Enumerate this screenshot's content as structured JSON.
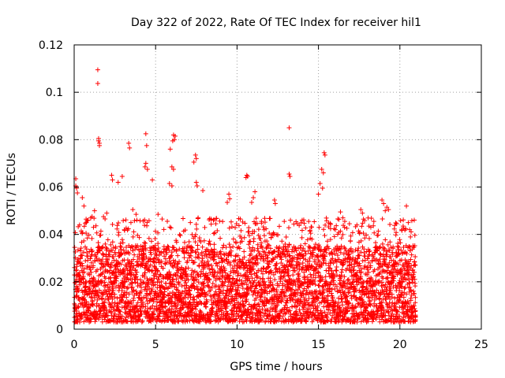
{
  "chart_data": {
    "type": "scatter",
    "title": "Day 322 of 2022, Rate Of TEC Index for receiver hil1",
    "xlabel": "GPS time / hours",
    "ylabel": "ROTI / TECUs",
    "xlim": [
      0,
      25
    ],
    "ylim": [
      0,
      0.12
    ],
    "x_ticks": [
      "0",
      "5",
      "10",
      "15",
      "20",
      "25"
    ],
    "y_ticks": [
      "0",
      "0.02",
      "0.04",
      "0.06",
      "0.08",
      "0.1",
      "0.12"
    ],
    "grid": true,
    "marker": "+",
    "color": "#ff0000",
    "x_range_data": [
      0,
      21
    ],
    "typical_y_range": [
      0.003,
      0.035
    ],
    "series": [
      {
        "points": [
          [
            1.45,
            0.1095
          ],
          [
            1.45,
            0.1037
          ],
          [
            1.5,
            0.0805
          ],
          [
            1.5,
            0.0795
          ],
          [
            1.55,
            0.0785
          ],
          [
            1.55,
            0.0775
          ],
          [
            13.2,
            0.085
          ],
          [
            4.4,
            0.0825
          ],
          [
            6.1,
            0.082
          ],
          [
            6.2,
            0.0815
          ],
          [
            6.15,
            0.08
          ],
          [
            6.05,
            0.0795
          ],
          [
            3.35,
            0.0785
          ],
          [
            3.4,
            0.0765
          ],
          [
            4.45,
            0.0775
          ],
          [
            4.4,
            0.07
          ],
          [
            4.35,
            0.0685
          ],
          [
            4.5,
            0.0675
          ],
          [
            5.9,
            0.076
          ],
          [
            6.0,
            0.0685
          ],
          [
            6.1,
            0.0675
          ],
          [
            7.45,
            0.0735
          ],
          [
            7.5,
            0.072
          ],
          [
            7.35,
            0.0705
          ],
          [
            7.5,
            0.062
          ],
          [
            7.55,
            0.0605
          ],
          [
            15.35,
            0.0745
          ],
          [
            15.4,
            0.0735
          ],
          [
            15.2,
            0.0675
          ],
          [
            15.3,
            0.066
          ],
          [
            13.2,
            0.0655
          ],
          [
            13.25,
            0.0645
          ],
          [
            10.6,
            0.065
          ],
          [
            10.65,
            0.0645
          ],
          [
            10.55,
            0.064
          ],
          [
            0.1,
            0.0635
          ],
          [
            0.1,
            0.0605
          ],
          [
            0.15,
            0.0595
          ],
          [
            0.2,
            0.0575
          ],
          [
            2.3,
            0.065
          ],
          [
            2.35,
            0.063
          ],
          [
            2.7,
            0.062
          ],
          [
            2.95,
            0.0645
          ],
          [
            4.8,
            0.063
          ],
          [
            5.85,
            0.0615
          ],
          [
            6.0,
            0.0605
          ],
          [
            7.9,
            0.0585
          ],
          [
            9.5,
            0.057
          ],
          [
            9.55,
            0.055
          ],
          [
            9.4,
            0.0535
          ],
          [
            11.1,
            0.058
          ],
          [
            11.0,
            0.0555
          ],
          [
            10.9,
            0.0535
          ],
          [
            15.1,
            0.0615
          ],
          [
            15.25,
            0.0595
          ],
          [
            15.0,
            0.057
          ],
          [
            12.3,
            0.0545
          ],
          [
            12.35,
            0.053
          ],
          [
            18.9,
            0.0545
          ],
          [
            19.0,
            0.053
          ],
          [
            19.2,
            0.0515
          ],
          [
            19.3,
            0.0505
          ],
          [
            19.1,
            0.05
          ],
          [
            20.4,
            0.052
          ],
          [
            17.6,
            0.0505
          ],
          [
            17.7,
            0.049
          ],
          [
            16.35,
            0.0495
          ],
          [
            16.5,
            0.047
          ],
          [
            0.5,
            0.0555
          ],
          [
            0.6,
            0.052
          ],
          [
            0.75,
            0.045
          ],
          [
            0.85,
            0.046
          ],
          [
            1.25,
            0.05
          ],
          [
            1.1,
            0.0475
          ],
          [
            1.8,
            0.0475
          ],
          [
            2.0,
            0.049
          ],
          [
            3.6,
            0.0505
          ],
          [
            3.8,
            0.0485
          ],
          [
            5.15,
            0.0485
          ],
          [
            5.4,
            0.0465
          ],
          [
            8.55,
            0.046
          ],
          [
            8.7,
            0.0445
          ],
          [
            10.2,
            0.0465
          ],
          [
            11.5,
            0.0455
          ],
          [
            12.9,
            0.0455
          ],
          [
            13.7,
            0.0445
          ],
          [
            14.0,
            0.046
          ],
          [
            14.4,
            0.0455
          ],
          [
            16.9,
            0.0445
          ],
          [
            18.1,
            0.0435
          ],
          [
            18.4,
            0.0455
          ],
          [
            19.8,
            0.0445
          ],
          [
            20.2,
            0.0435
          ],
          [
            20.6,
            0.042
          ]
        ],
        "bulk_points": "dense band of measurements every ~0.01 h from 0 to 21 h, ROTI roughly 0.003-0.035 TECU/s"
      }
    ]
  }
}
